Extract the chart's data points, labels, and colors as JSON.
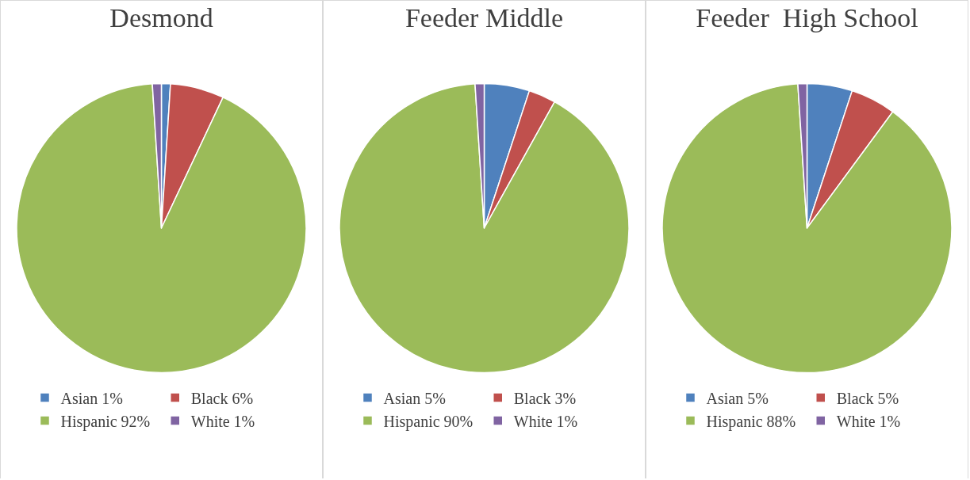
{
  "chart_data": [
    {
      "type": "pie",
      "title": "Desmond",
      "categories": [
        "Asian 1%",
        "Black 6%",
        "Hispanic 92%",
        "White 1%"
      ],
      "values": [
        1,
        6,
        92,
        1
      ],
      "colors": [
        "#4f81bd",
        "#c0504d",
        "#9bbb59",
        "#8064a2"
      ],
      "legend": "bottom"
    },
    {
      "type": "pie",
      "title": "Feeder Middle",
      "categories": [
        "Asian 5%",
        "Black 3%",
        "Hispanic 90%",
        "White 1%"
      ],
      "values": [
        5,
        3,
        90,
        1
      ],
      "colors": [
        "#4f81bd",
        "#c0504d",
        "#9bbb59",
        "#8064a2"
      ],
      "legend": "bottom"
    },
    {
      "type": "pie",
      "title": "Feeder  High School",
      "categories": [
        "Asian 5%",
        "Black 5%",
        "Hispanic 88%",
        "White 1%"
      ],
      "values": [
        5,
        5,
        88,
        1
      ],
      "colors": [
        "#4f81bd",
        "#c0504d",
        "#9bbb59",
        "#8064a2"
      ],
      "legend": "bottom"
    }
  ]
}
